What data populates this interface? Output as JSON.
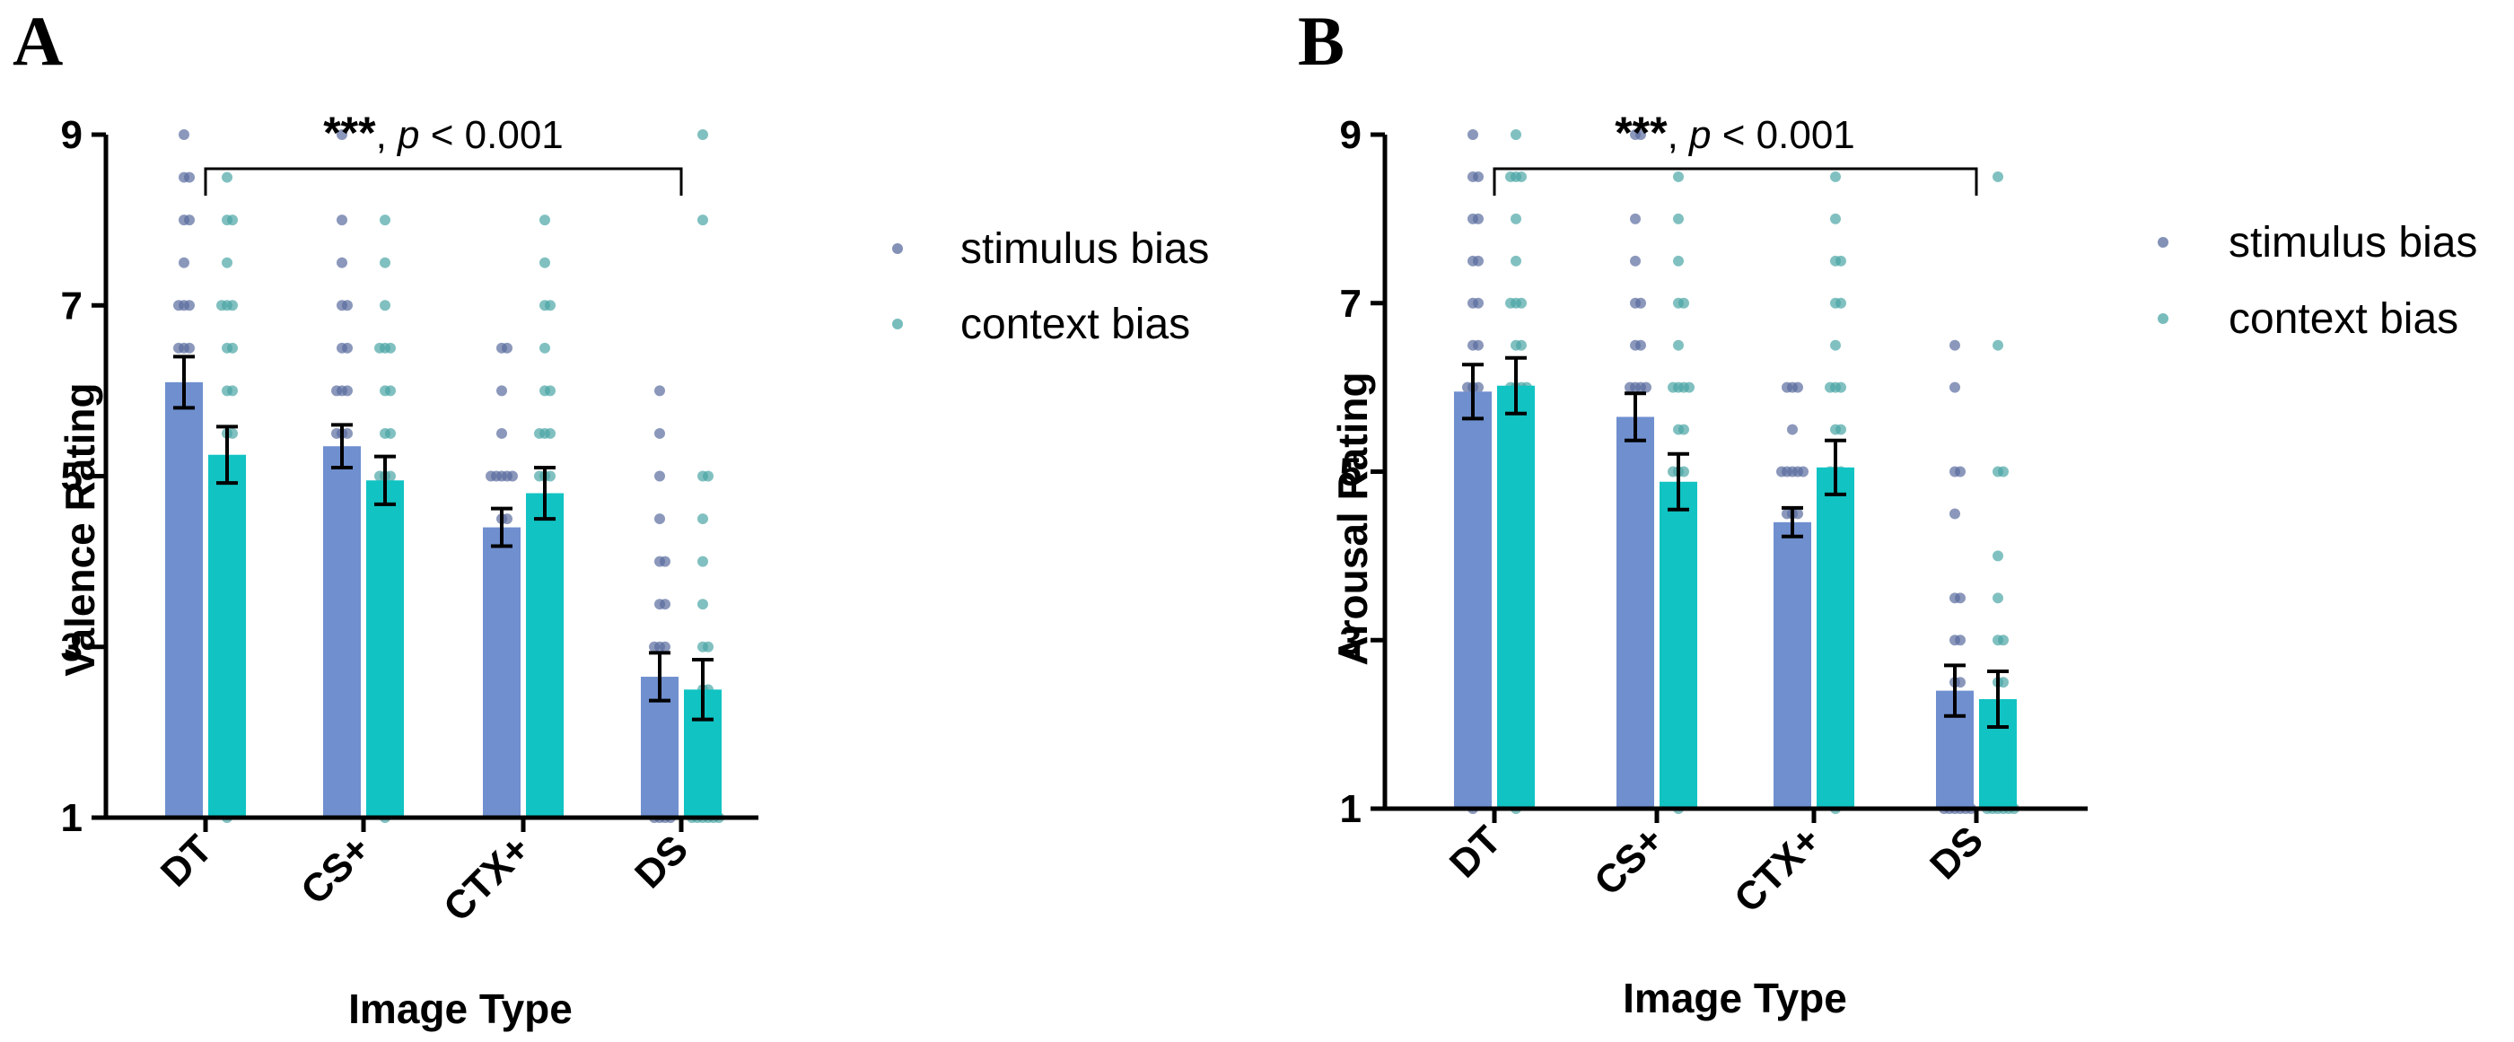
{
  "significance_stars": "***",
  "chart_data": [
    {
      "panel": "A",
      "type": "bar",
      "xlabel": "Image Type",
      "ylabel": "Valence Rating",
      "ylim": [
        1,
        9
      ],
      "yticks": [
        "1",
        "3",
        "5",
        "7",
        "9"
      ],
      "categories": [
        "DT",
        "CS+",
        "CTX+",
        "DS"
      ],
      "significance": {
        "stars": "***",
        "p_label": "p",
        "p_text": " < 0.001",
        "from": "DT",
        "to": "DS"
      },
      "series": [
        {
          "name": "stimulus bias",
          "color": "#6f8fcf",
          "dot_color": "#5a6c9e",
          "values": [
            6.1,
            5.35,
            4.4,
            2.65
          ],
          "sem": [
            0.3,
            0.25,
            0.22,
            0.28
          ],
          "points": [
            [
              9,
              8.5,
              8.5,
              8,
              8,
              7.5,
              7,
              7,
              7,
              6.5,
              6.5,
              6.5,
              6,
              6,
              6,
              5.5,
              5.5,
              5.5,
              5,
              5,
              5,
              5,
              4.5,
              4.5,
              4,
              4,
              3.5,
              3.5,
              3
            ],
            [
              9,
              8,
              7.5,
              7,
              7,
              6.5,
              6.5,
              6,
              6,
              6,
              5.5,
              5.5,
              5.5,
              5,
              5,
              5,
              5,
              4.5,
              4.5,
              4.5,
              4,
              4,
              3.5,
              3,
              3
            ],
            [
              6.5,
              6.5,
              6,
              5.5,
              5,
              5,
              5,
              5,
              5,
              4.5,
              4.5,
              4,
              4,
              4,
              3.5,
              3.5,
              3,
              3,
              3,
              3,
              2.5,
              2.5,
              2,
              2,
              1.5
            ],
            [
              6,
              5.5,
              5,
              4.5,
              4,
              4,
              3.5,
              3.5,
              3,
              3,
              3,
              2.5,
              2.5,
              2,
              2,
              2,
              1.5,
              1.5,
              1.5,
              1,
              1,
              1,
              1
            ]
          ]
        },
        {
          "name": "context bias",
          "color": "#11c3c3",
          "dot_color": "#4ba5a5",
          "values": [
            5.25,
            4.95,
            4.8,
            2.5
          ],
          "sem": [
            0.33,
            0.28,
            0.3,
            0.35
          ],
          "points": [
            [
              8.5,
              8,
              8,
              7.5,
              7,
              7,
              7,
              6.5,
              6.5,
              6,
              6,
              5.5,
              5.5,
              5,
              5,
              5,
              4.5,
              4.5,
              4,
              4,
              3.5,
              3,
              3,
              2.5,
              2.5,
              2,
              1.5,
              1
            ],
            [
              8,
              7.5,
              7,
              6.5,
              6.5,
              6.5,
              6,
              6,
              5.5,
              5.5,
              5,
              5,
              5,
              4.5,
              4.5,
              4,
              4,
              4,
              3.5,
              3,
              3,
              2.5,
              2,
              1.5,
              1
            ],
            [
              8,
              7.5,
              7,
              7,
              6.5,
              6,
              6,
              5.5,
              5.5,
              5.5,
              5,
              5,
              5,
              4.5,
              4.5,
              4,
              4,
              3.5,
              3,
              3,
              3,
              2.5,
              2,
              1.5
            ],
            [
              9,
              8,
              5,
              5,
              4.5,
              4,
              3.5,
              3,
              3,
              2.5,
              2.5,
              2,
              2,
              1.5,
              1.5,
              1,
              1,
              1,
              1,
              1,
              1
            ]
          ]
        }
      ]
    },
    {
      "panel": "B",
      "type": "bar",
      "xlabel": "Image Type",
      "ylabel": "Arousal Rating",
      "ylim": [
        1,
        9
      ],
      "yticks": [
        "1",
        "3",
        "5",
        "7",
        "9"
      ],
      "categories": [
        "DT",
        "CS+",
        "CTX+",
        "DS"
      ],
      "significance": {
        "stars": "***",
        "p_label": "p",
        "p_text": " < 0.001",
        "from": "DT",
        "to": "DS"
      },
      "series": [
        {
          "name": "stimulus bias",
          "color": "#6f8fcf",
          "dot_color": "#5a6c9e",
          "values": [
            5.95,
            5.65,
            4.4,
            2.4
          ],
          "sem": [
            0.32,
            0.28,
            0.17,
            0.3
          ],
          "points": [
            [
              9,
              8.5,
              8.5,
              8,
              8,
              7.5,
              7.5,
              7,
              7,
              6.5,
              6.5,
              6,
              6,
              6,
              5.5,
              5.5,
              5,
              5,
              4.5,
              4.5,
              4,
              4,
              3.5,
              3.5,
              3,
              3,
              1
            ],
            [
              9,
              9,
              8,
              7.5,
              7,
              7,
              6.5,
              6.5,
              6,
              6,
              6,
              6,
              5.5,
              5.5,
              5,
              5,
              4.5,
              4.5,
              4,
              4,
              3.5,
              3.5,
              3,
              2.5
            ],
            [
              6,
              6,
              6,
              5.5,
              5,
              5,
              5,
              5,
              5,
              4.5,
              4.5,
              4.5,
              4,
              4,
              4,
              4,
              3.5,
              3.5,
              3.5,
              3,
              3,
              3,
              2.5
            ],
            [
              6.5,
              6,
              5,
              5,
              4.5,
              3.5,
              3.5,
              3,
              3,
              2.5,
              2.5,
              2,
              2,
              1.5,
              1.5,
              1,
              1,
              1,
              1,
              1,
              1
            ]
          ]
        },
        {
          "name": "context bias",
          "color": "#11c3c3",
          "dot_color": "#4ba5a5",
          "values": [
            6.02,
            4.88,
            5.05,
            2.3
          ],
          "sem": [
            0.33,
            0.33,
            0.32,
            0.33
          ],
          "points": [
            [
              9,
              8.5,
              8.5,
              8.5,
              8,
              7.5,
              7,
              7,
              7,
              6.5,
              6.5,
              6,
              6,
              6,
              6,
              5.5,
              5.5,
              5,
              5,
              5,
              4.5,
              4,
              4,
              3.5,
              3,
              3,
              2,
              1.5,
              1
            ],
            [
              8.5,
              8,
              7.5,
              7,
              7,
              6.5,
              6,
              6,
              6,
              6,
              5.5,
              5.5,
              5,
              5,
              5,
              4.5,
              4.5,
              4,
              3.5,
              3,
              3,
              2.5,
              2,
              1.5,
              1
            ],
            [
              8.5,
              8,
              7.5,
              7.5,
              7,
              7,
              6.5,
              6,
              6,
              6,
              5.5,
              5.5,
              5,
              5,
              5,
              4.5,
              4.5,
              4,
              3.5,
              3,
              3,
              3,
              2.5,
              2,
              1.5,
              1
            ],
            [
              8.5,
              6.5,
              5,
              5,
              4,
              3.5,
              3,
              3,
              2.5,
              2.5,
              2,
              2,
              1.5,
              1.5,
              1,
              1,
              1,
              1,
              1,
              1
            ]
          ]
        }
      ]
    }
  ]
}
